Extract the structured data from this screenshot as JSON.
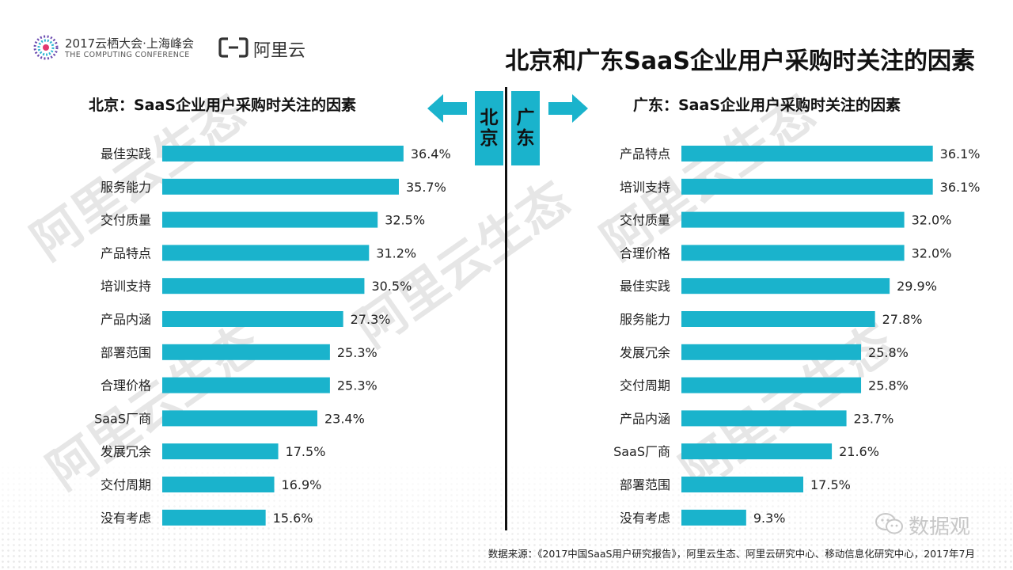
{
  "header": {
    "conference_line1": "2017云栖大会·上海峰会",
    "conference_line2": "THE COMPUTING CONFERENCE",
    "brand": "阿里云",
    "main_title": "北京和广东SaaS企业用户采购时关注的因素"
  },
  "tags": {
    "left": "北\n京",
    "right": "广\n东"
  },
  "colors": {
    "bar": "#1ab3cc",
    "text": "#222222"
  },
  "chart_data": [
    {
      "type": "bar",
      "orientation": "horizontal",
      "title": "北京：SaaS企业用户采购时关注的因素",
      "categories": [
        "最佳实践",
        "服务能力",
        "交付质量",
        "产品特点",
        "培训支持",
        "产品内涵",
        "部署范围",
        "合理价格",
        "SaaS厂商",
        "发展冗余",
        "交付周期",
        "没有考虑"
      ],
      "values": [
        36.4,
        35.7,
        32.5,
        31.2,
        30.5,
        27.3,
        25.3,
        25.3,
        23.4,
        17.5,
        16.9,
        15.6
      ],
      "value_labels": [
        "36.4%",
        "35.7%",
        "32.5%",
        "31.2%",
        "30.5%",
        "27.3%",
        "25.3%",
        "25.3%",
        "23.4%",
        "17.5%",
        "16.9%",
        "15.6%"
      ],
      "unit": "%",
      "xlim": [
        0,
        40
      ],
      "grid": false,
      "legend": "none"
    },
    {
      "type": "bar",
      "orientation": "horizontal",
      "title": "广东：SaaS企业用户采购时关注的因素",
      "categories": [
        "产品特点",
        "培训支持",
        "交付质量",
        "合理价格",
        "最佳实践",
        "服务能力",
        "发展冗余",
        "交付周期",
        "产品内涵",
        "SaaS厂商",
        "部署范围",
        "没有考虑"
      ],
      "values": [
        36.1,
        36.1,
        32.0,
        32.0,
        29.9,
        27.8,
        25.8,
        25.8,
        23.7,
        21.6,
        17.5,
        9.3
      ],
      "value_labels": [
        "36.1%",
        "36.1%",
        "32.0%",
        "32.0%",
        "29.9%",
        "27.8%",
        "25.8%",
        "25.8%",
        "23.7%",
        "21.6%",
        "17.5%",
        "9.3%"
      ],
      "unit": "%",
      "xlim": [
        0,
        40
      ],
      "grid": false,
      "legend": "none"
    }
  ],
  "source": "数据来源：《2017中国SaaS用户研究报告》，阿里云生态、阿里云研究中心、移动信息化研究中心，2017年7月",
  "badge": {
    "icon": "wechat-icon",
    "text": "数据观"
  },
  "watermark": "阿里云生态"
}
